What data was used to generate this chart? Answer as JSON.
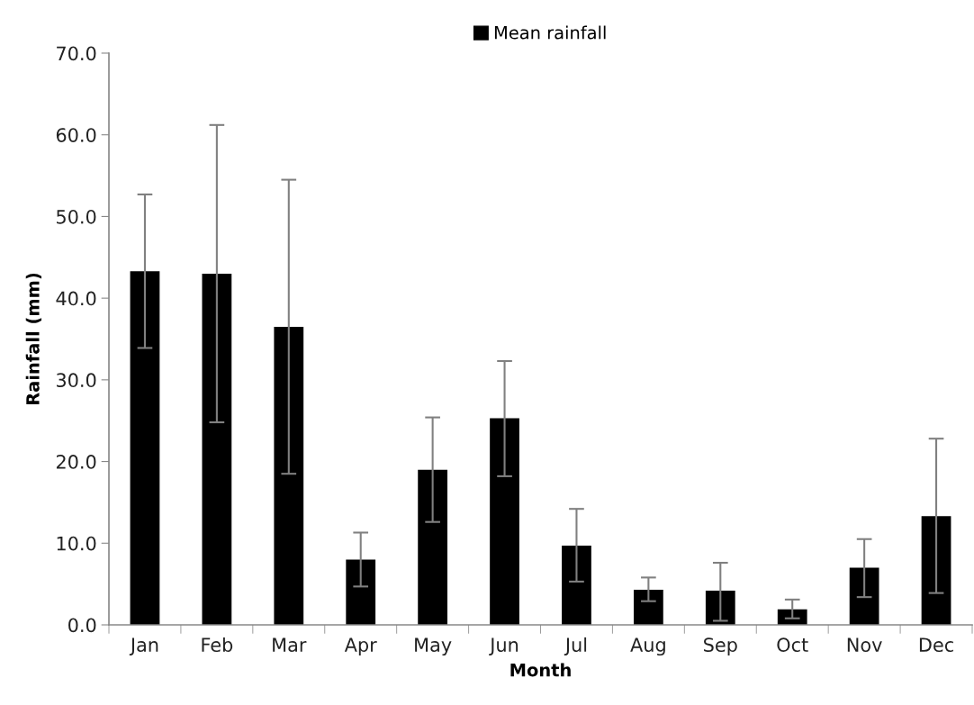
{
  "chart_data": {
    "type": "bar",
    "xlabel": "Month",
    "ylabel": "Rainfall (mm)",
    "categories": [
      "Jan",
      "Feb",
      "Mar",
      "Apr",
      "May",
      "Jun",
      "Jul",
      "Aug",
      "Sep",
      "Oct",
      "Nov",
      "Dec"
    ],
    "series": [
      {
        "name": "Mean rainfall",
        "color": "#000000",
        "values": [
          43.3,
          43.0,
          36.5,
          8.0,
          19.0,
          25.3,
          9.7,
          4.3,
          4.2,
          1.9,
          7.0,
          13.3
        ],
        "errors": [
          [
            33.9,
            52.7
          ],
          [
            24.8,
            61.2
          ],
          [
            18.5,
            54.5
          ],
          [
            4.7,
            11.3
          ],
          [
            12.6,
            25.4
          ],
          [
            18.2,
            32.3
          ],
          [
            5.3,
            14.2
          ],
          [
            2.9,
            5.8
          ],
          [
            0.5,
            7.6
          ],
          [
            0.8,
            3.1
          ],
          [
            3.4,
            10.5
          ],
          [
            3.9,
            22.8
          ]
        ]
      }
    ],
    "ylim": [
      0,
      70
    ],
    "yticks": [
      {
        "value": 0,
        "label": "0.0"
      },
      {
        "value": 10,
        "label": "10.0"
      },
      {
        "value": 20,
        "label": "20.0"
      },
      {
        "value": 30,
        "label": "30.0"
      },
      {
        "value": 40,
        "label": "40.0"
      },
      {
        "value": 50,
        "label": "50.0"
      },
      {
        "value": 60,
        "label": "60.0"
      },
      {
        "value": 70,
        "label": "70.0"
      }
    ],
    "grid": false,
    "legend": "top"
  }
}
